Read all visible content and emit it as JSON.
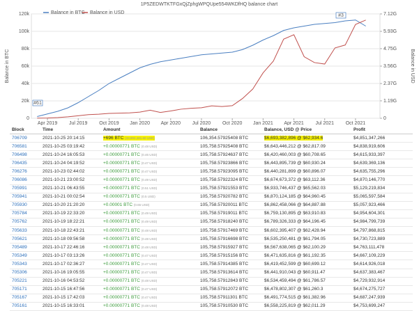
{
  "chart_data": {
    "type": "line",
    "title": "1P5ZEDWTKTFGxQjZphgWPQUpe554WKDfHQ balance chart",
    "categories": [
      null,
      "Apr 2019",
      null,
      null,
      "Jul 2019",
      null,
      null,
      "Oct 2019",
      null,
      null,
      "Jan 2020",
      null,
      null,
      "Apr 2020",
      null,
      null,
      "Jul 2020",
      null,
      null,
      "Oct 2020",
      null,
      null,
      "Jan 2021",
      null,
      null,
      "Apr 2021",
      null,
      null,
      "Jul 2021",
      null,
      null,
      "Oct 2021",
      null
    ],
    "series": [
      {
        "name": "Balance in BTC",
        "color": "#4a7fc1",
        "values": [
          2,
          5,
          8,
          12,
          18,
          25,
          32,
          40,
          46,
          52,
          58,
          62,
          65,
          67,
          69,
          71,
          73,
          74,
          75,
          76,
          79,
          84,
          90,
          95,
          101,
          104,
          106,
          108,
          109,
          110,
          112,
          113,
          106
        ]
      },
      {
        "name": "Balance in USD",
        "color": "#c0504d",
        "axis": "y2",
        "values": [
          0.01,
          0.02,
          0.05,
          0.1,
          0.17,
          0.25,
          0.28,
          0.33,
          0.35,
          0.37,
          0.42,
          0.55,
          0.4,
          0.5,
          0.62,
          0.68,
          0.72,
          0.85,
          0.8,
          0.86,
          1.35,
          2.0,
          3.1,
          3.9,
          5.4,
          5.7,
          4.2,
          3.8,
          3.7,
          4.8,
          5.0,
          6.4,
          6.7
        ]
      }
    ],
    "ylabel": "Balance in BTC",
    "y2label": "Balance in USD",
    "ylim": [
      0,
      120
    ],
    "yticks": [
      0,
      {
        "value": 20,
        "label": "20k"
      },
      {
        "value": 40,
        "label": "40k"
      },
      {
        "value": 60,
        "label": "60k"
      },
      {
        "value": 80,
        "label": "80k"
      },
      {
        "value": 100,
        "label": "100k"
      },
      {
        "value": 120,
        "label": "120k"
      }
    ],
    "y2lim": [
      0,
      7.12
    ],
    "y2ticks": [
      0,
      {
        "value": 1.19,
        "label": "1.19G"
      },
      {
        "value": 2.37,
        "label": "2.37G"
      },
      {
        "value": 3.56,
        "label": "3.56G"
      },
      {
        "value": 4.75,
        "label": "4.75G"
      },
      {
        "value": 5.93,
        "label": "5.93G"
      },
      {
        "value": 7.12,
        "label": "7.12G"
      }
    ],
    "annotations": [
      "#61",
      "#3"
    ],
    "grid": true,
    "legend": "top-left"
  },
  "table": {
    "header": [
      "Block",
      "Time",
      "Amount",
      "Balance",
      "Balance, USD @ Price",
      "Profit"
    ],
    "rows": [
      [
        "706709",
        "2021-10-25 20:14:15",
        "+696 BTC",
        "(43,802,481.60 USD)",
        "106,354.57925408 BTC",
        "$6,693,382,896 @ $62,934.6",
        "$4,851,347,266"
      ],
      [
        "706581",
        "2021-10-25 03:19:42",
        "+0.00000771 BTC",
        "(0.48 USD)",
        "105,758.57925408 BTC",
        "$6,643,446,212 @ $62,817.09",
        "$4,838,919,606"
      ],
      [
        "706498",
        "2021-10-24 16:05:53",
        "+0.00000771 BTC",
        "(0.46 USD)",
        "105,758.57924637 BTC",
        "$6,420,460,003 @ $60,708.65",
        "$4,615,933,397"
      ],
      [
        "706435",
        "2021-10-24 04:19:52",
        "+0.00000771 BTC",
        "(0.47 USD)",
        "105,758.57923866 BTC",
        "$6,443,895,739 @ $60,930.24",
        "$4,639,369,136"
      ],
      [
        "706276",
        "2021-10-23 02:44:02",
        "+0.00000771 BTC",
        "(0.47 USD)",
        "105,758.57923095 BTC",
        "$6,440,281,899 @ $60,896.07",
        "$4,635,755,296"
      ],
      [
        "706086",
        "2021-10-21 23:00:52",
        "+0.00000771 BTC",
        "(0.49 USD)",
        "105,758.57922324 BTC",
        "$6,674,673,372 @ $63,112.36",
        "$4,870,146,770"
      ],
      [
        "705991",
        "2021-10-21 06:43:55",
        "+0.00000771 BTC",
        "(0.51 USD)",
        "105,758.57921553 BTC",
        "$6,933,746,437 @ $65,562.03",
        "$5,129,219,834"
      ],
      [
        "705941",
        "2021-10-21 00:02:54",
        "+0.00000771 BTC",
        "(0.5 USD)",
        "105,758.57920782 BTC",
        "$6,870,124,185 @ $64,960.45",
        "$5,065,597,584"
      ],
      [
        "705930",
        "2021-10-20 21:20:20",
        "+0.00001 BTC",
        "(0.65 USD)",
        "105,758.57920011 BTC",
        "$6,862,458,066 @ $64,887.88",
        "$5,057,923,466"
      ],
      [
        "705784",
        "2021-10-19 22:33:20",
        "+0.00000771 BTC",
        "(0.49 USD)",
        "105,758.57919011 BTC",
        "$6,759,130,895 @ $63,910.83",
        "$4,954,604,301"
      ],
      [
        "705762",
        "2021-10-19 18:22:21",
        "+0.00000771 BTC",
        "(0.49 USD)",
        "105,758.57918240 BTC",
        "$6,789,326,333 @ $64,196.45",
        "$4,984,799,739"
      ],
      [
        "705633",
        "2021-10-18 22:43:21",
        "+0.00000771 BTC",
        "(0.48 USD)",
        "105,758.57917469 BTC",
        "$6,602,395,407 @ $62,428.94",
        "$4,797,868,815"
      ],
      [
        "705621",
        "2021-10-18 09:56:58",
        "+0.00000771 BTC",
        "(0.48 USD)",
        "105,758.57916698 BTC",
        "$6,535,250,481 @ $61,794.05",
        "$4,730,723,889"
      ],
      [
        "705489",
        "2021-10-17 22:46:16",
        "+0.00000771 BTC",
        "(0.48 USD)",
        "105,758.57915927 BTC",
        "$6,567,638,065 @ $62,100.29",
        "$4,763,111,478"
      ],
      [
        "705349",
        "2021-10-17 03:13:26",
        "+0.00000771 BTC",
        "(0.47 USD)",
        "105,758.57915156 BTC",
        "$6,471,635,816 @ $61,192.35",
        "$4,667,109,229"
      ],
      [
        "705343",
        "2021-10-17 02:36:27",
        "+0.00000771 BTC",
        "(0.47 USD)",
        "105,758.57914385 BTC",
        "$6,419,452,599 @ $60,699.12",
        "$4,614,926,018"
      ],
      [
        "705306",
        "2021-10-16 19:05:55",
        "+0.00000771 BTC",
        "(0.47 USD)",
        "105,758.57913614 BTC",
        "$6,441,910,043 @ $60,911.47",
        "$4,637,383,467"
      ],
      [
        "705221",
        "2021-10-16 04:53:52",
        "+0.00000771 BTC",
        "(0.48 USD)",
        "105,758.57912843 BTC",
        "$6,534,459,494 @ $61,786.57",
        "$4,729,932,914"
      ],
      [
        "705171",
        "2021-10-15 16:47:56",
        "+0.00000771 BTC",
        "(0.47 USD)",
        "105,758.57912072 BTC",
        "$6,478,802,307 @ $61,260.3",
        "$4,674,275,727"
      ],
      [
        "705167",
        "2021-10-15 17:42:03",
        "+0.00000771 BTC",
        "(0.47 USD)",
        "105,758.57911301 BTC",
        "$6,491,774,515 @ $61,382.96",
        "$4,687,247,939"
      ],
      [
        "705161",
        "2021-10-15 16:33:01",
        "+0.00000771 BTC",
        "(0.48 USD)",
        "105,758.57910530 BTC",
        "$6,558,225,819 @ $62,011.29",
        "$4,753,699,247"
      ]
    ]
  }
}
